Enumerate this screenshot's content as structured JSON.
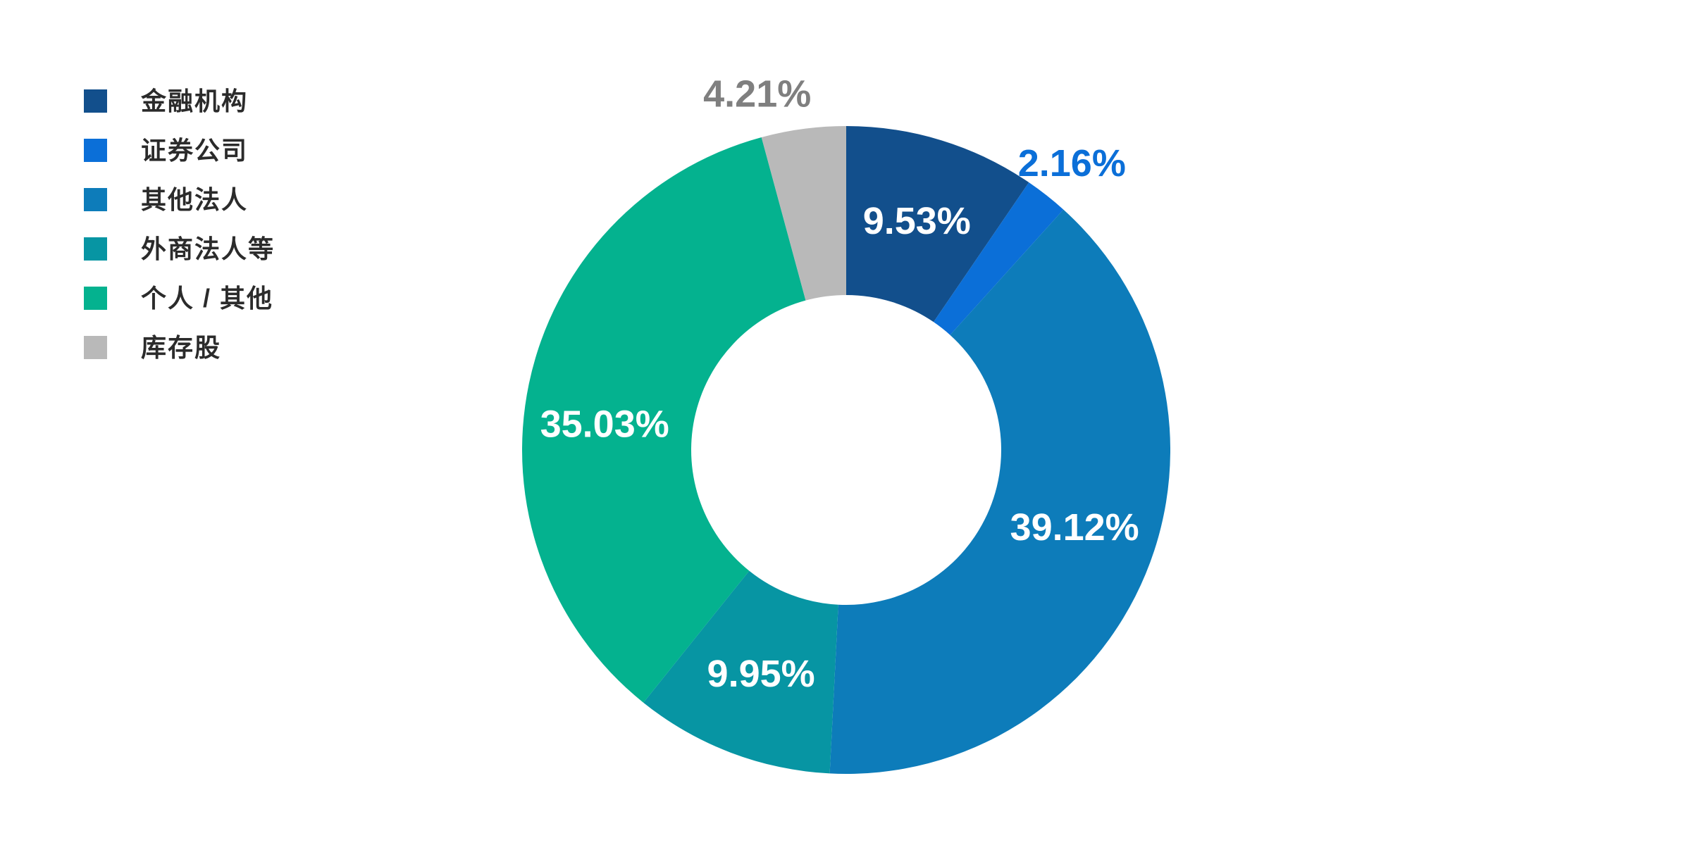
{
  "chart_data": {
    "type": "pie",
    "subtype": "donut",
    "title": "",
    "legend_position": "left",
    "start_angle_deg": 0,
    "direction": "clockwise",
    "inside_label_color": "#ffffff",
    "background_color": "#ffffff",
    "slices": [
      {
        "label": "金融机构",
        "value": 9.53,
        "display": "9.53%",
        "color": "#124f8c",
        "label_placement": "inside"
      },
      {
        "label": "证券公司",
        "value": 2.16,
        "display": "2.16%",
        "color": "#0b6fd8",
        "label_placement": "outside",
        "label_color": "#0b6fd8"
      },
      {
        "label": "其他法人",
        "value": 39.12,
        "display": "39.12%",
        "color": "#0d7cba",
        "label_placement": "inside"
      },
      {
        "label": "外商法人等",
        "value": 9.95,
        "display": "9.95%",
        "color": "#0795a3",
        "label_placement": "inside"
      },
      {
        "label": "个人 / 其他",
        "value": 35.03,
        "display": "35.03%",
        "color": "#04b28f",
        "label_placement": "inside"
      },
      {
        "label": "库存股",
        "value": 4.21,
        "display": "4.21%",
        "color": "#b9b9b9",
        "label_placement": "outside",
        "label_color": "#7f7f7f"
      }
    ]
  }
}
